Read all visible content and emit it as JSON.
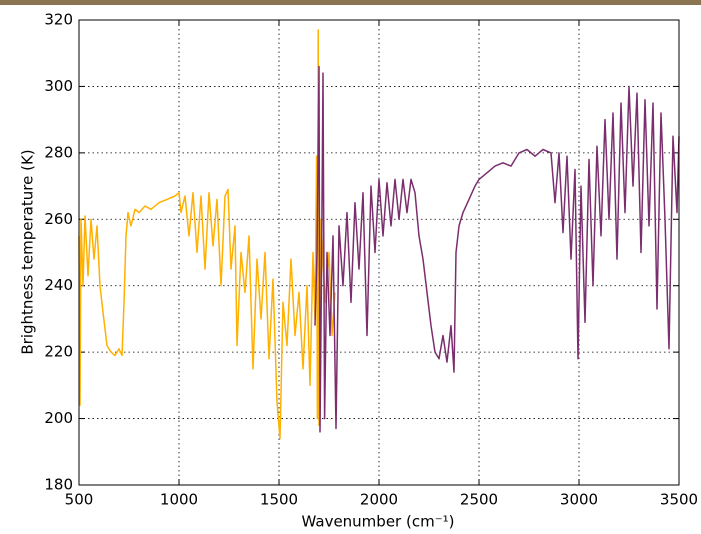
{
  "chart_data": {
    "type": "line",
    "xlabel": "Wavenumber (cm⁻¹)",
    "ylabel": "Brightness temperature (K)",
    "xlim": [
      500,
      3500
    ],
    "xticks": [
      500,
      1000,
      1500,
      2000,
      2500,
      3000,
      3500
    ],
    "ylim": [
      180,
      320
    ],
    "yticks": [
      180,
      200,
      220,
      240,
      260,
      280,
      300,
      320
    ],
    "grid": true,
    "series": [
      {
        "color": "#ffb000",
        "x": [
          500,
          505,
          510,
          520,
          530,
          545,
          560,
          575,
          590,
          605,
          620,
          640,
          660,
          680,
          700,
          715,
          725,
          735,
          745,
          760,
          780,
          800,
          830,
          860,
          900,
          940,
          980,
          1000,
          1010,
          1030,
          1050,
          1070,
          1090,
          1110,
          1130,
          1150,
          1170,
          1190,
          1210,
          1230,
          1245,
          1260,
          1280,
          1290,
          1310,
          1330,
          1350,
          1370,
          1390,
          1410,
          1430,
          1450,
          1470,
          1490,
          1505,
          1520,
          1540,
          1560,
          1580,
          1600,
          1620,
          1640,
          1655,
          1670,
          1680,
          1688,
          1692,
          1696,
          1700,
          1710,
          1730,
          1750,
          1765,
          1780
        ],
        "values": [
          255,
          204,
          260,
          240,
          261,
          243,
          260,
          248,
          258,
          240,
          232,
          222,
          220,
          219,
          221,
          219,
          235,
          255,
          262,
          258,
          263,
          262,
          264,
          263,
          265,
          266,
          267,
          268,
          262,
          267,
          255,
          268,
          250,
          267,
          245,
          268,
          252,
          266,
          240,
          267,
          269,
          245,
          258,
          222,
          250,
          238,
          255,
          215,
          248,
          230,
          250,
          218,
          242,
          205,
          194,
          235,
          222,
          248,
          225,
          238,
          215,
          240,
          210,
          250,
          230,
          279,
          200,
          317,
          198,
          260,
          235,
          250,
          225,
          238
        ]
      },
      {
        "color": "#7b2e6e",
        "x": [
          1680,
          1690,
          1700,
          1705,
          1712,
          1720,
          1728,
          1740,
          1755,
          1770,
          1785,
          1800,
          1820,
          1840,
          1860,
          1880,
          1900,
          1920,
          1940,
          1960,
          1980,
          2000,
          2020,
          2040,
          2060,
          2080,
          2100,
          2120,
          2140,
          2160,
          2180,
          2200,
          2220,
          2240,
          2260,
          2280,
          2300,
          2320,
          2340,
          2360,
          2375,
          2385,
          2400,
          2420,
          2450,
          2480,
          2500,
          2540,
          2580,
          2620,
          2660,
          2700,
          2740,
          2780,
          2820,
          2860,
          2880,
          2900,
          2920,
          2940,
          2960,
          2980,
          2995,
          3010,
          3030,
          3050,
          3070,
          3090,
          3110,
          3130,
          3150,
          3170,
          3190,
          3210,
          3230,
          3250,
          3270,
          3290,
          3310,
          3330,
          3350,
          3370,
          3390,
          3410,
          3430,
          3450,
          3470,
          3490,
          3500
        ],
        "values": [
          228,
          250,
          306,
          196,
          240,
          304,
          200,
          250,
          225,
          255,
          197,
          258,
          240,
          262,
          235,
          265,
          245,
          268,
          225,
          270,
          250,
          272,
          255,
          271,
          258,
          272,
          260,
          272,
          262,
          272,
          268,
          255,
          248,
          238,
          228,
          220,
          218,
          225,
          217,
          228,
          214,
          250,
          258,
          262,
          266,
          270,
          272,
          274,
          276,
          277,
          276,
          280,
          281,
          279,
          281,
          280,
          265,
          280,
          256,
          279,
          248,
          275,
          218,
          270,
          229,
          278,
          240,
          282,
          255,
          290,
          260,
          292,
          248,
          295,
          262,
          300,
          270,
          298,
          250,
          296,
          258,
          295,
          233,
          292,
          260,
          221,
          285,
          262,
          285
        ]
      }
    ]
  }
}
